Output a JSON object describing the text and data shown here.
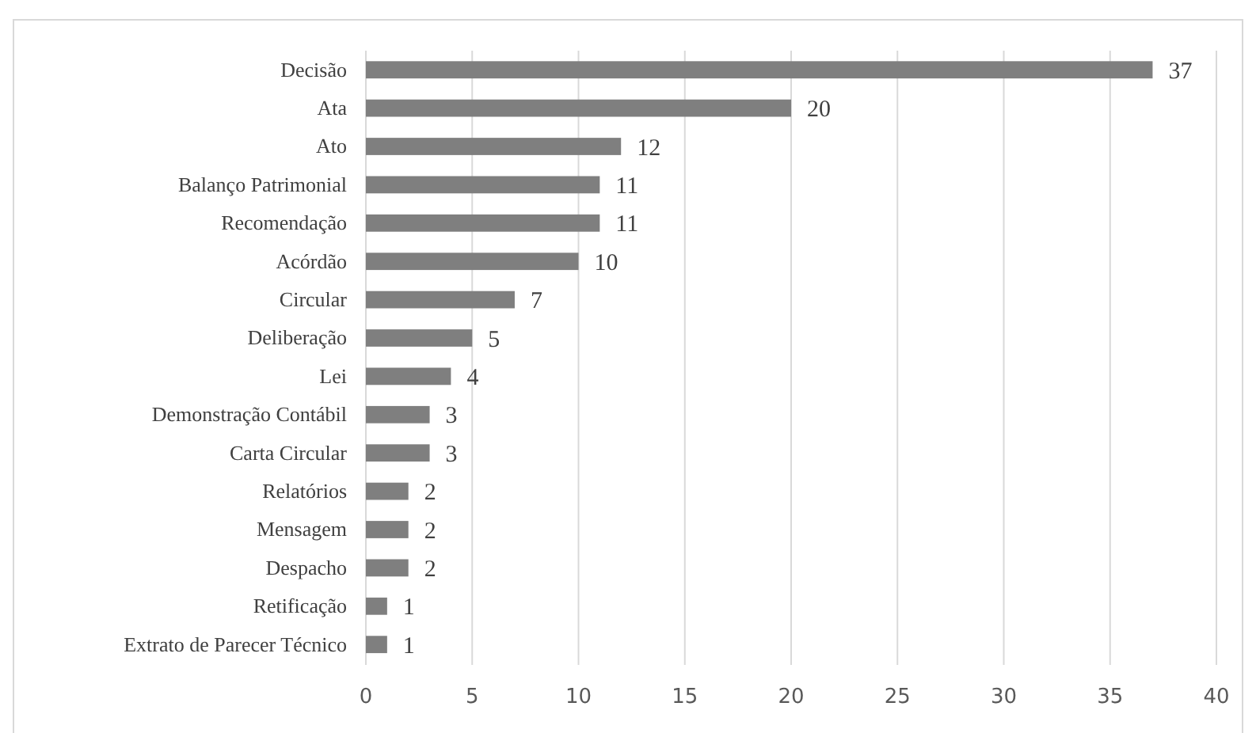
{
  "chart_data": {
    "type": "bar",
    "orientation": "horizontal",
    "categories": [
      "Decisão",
      "Ata",
      "Ato",
      "Balanço Patrimonial",
      "Recomendação",
      "Acórdão",
      "Circular",
      "Deliberação",
      "Lei",
      "Demonstração Contábil",
      "Carta Circular",
      "Relatórios",
      "Mensagem",
      "Despacho",
      "Retificação",
      "Extrato de Parecer Técnico"
    ],
    "values": [
      37,
      20,
      12,
      11,
      11,
      10,
      7,
      5,
      4,
      3,
      3,
      2,
      2,
      2,
      1,
      1
    ],
    "color": "#7f7f7f",
    "xlim": [
      0,
      40
    ],
    "xticks": [
      0,
      5,
      10,
      15,
      20,
      25,
      30,
      35,
      40
    ],
    "grid": "x",
    "data_labels": true
  }
}
